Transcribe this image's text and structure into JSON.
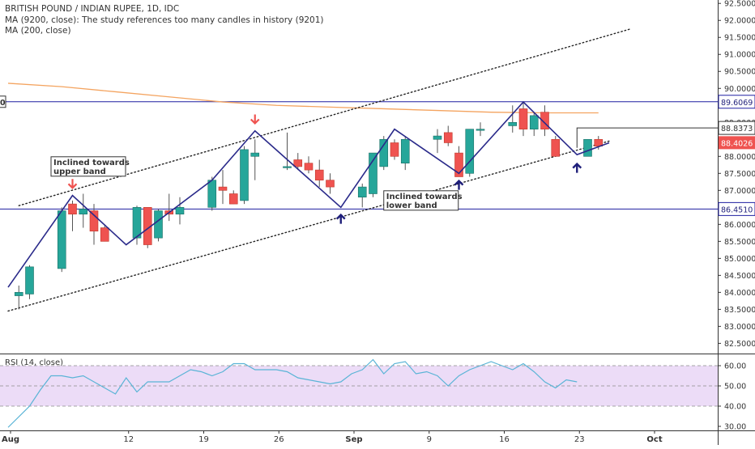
{
  "legend": {
    "title": "BRITISH POUND / INDIAN RUPEE, 1D, IDC",
    "ma1": "MA (9200, close): The study references too many candles in history (9201)",
    "ma2": "MA (200, close)",
    "rsi": "RSI (14, close)"
  },
  "colors": {
    "up": "#26a69a",
    "down": "#ef5350",
    "upBorder": "#1b6f66",
    "ma200": "#f4a460",
    "pattern": "#2a2a8a",
    "hline": "#1f1fa0",
    "rsi_line": "#5ab4d6",
    "rsi_band": "#ecdcf7",
    "arrow_down": "#ef5350",
    "arrow_up": "#1f1f7a"
  },
  "chart_data": [
    {
      "type": "candlestick",
      "title": "BRITISH POUND / INDIAN RUPEE, 1D, IDC",
      "x_ticks": [
        "Aug",
        "12",
        "19",
        "26",
        "Sep",
        "9",
        "16",
        "23",
        "Oct"
      ],
      "y_ticks": [
        "82.5000",
        "83.0000",
        "83.5000",
        "84.0000",
        "84.5000",
        "85.0000",
        "85.5000",
        "86.0000",
        "86.5000",
        "87.0000",
        "87.5000",
        "88.0000",
        "88.5000",
        "89.0000",
        "89.5000",
        "90.0000",
        "90.5000",
        "91.0000",
        "91.5000",
        "92.0000",
        "92.5000"
      ],
      "ylim": [
        82.2,
        92.6
      ],
      "days": [
        {
          "d": 1,
          "o": 83.9,
          "h": 84.2,
          "l": 83.5,
          "c": 84.0
        },
        {
          "d": 2,
          "o": 83.95,
          "h": 84.8,
          "l": 83.8,
          "c": 84.75
        },
        {
          "d": 5,
          "o": 84.7,
          "h": 86.5,
          "l": 84.6,
          "c": 86.4
        },
        {
          "d": 6,
          "o": 86.6,
          "h": 86.7,
          "l": 85.8,
          "c": 86.3
        },
        {
          "d": 7,
          "o": 86.3,
          "h": 86.9,
          "l": 85.9,
          "c": 86.45
        },
        {
          "d": 8,
          "o": 86.4,
          "h": 86.6,
          "l": 85.4,
          "c": 85.8
        },
        {
          "d": 9,
          "o": 85.9,
          "h": 86.0,
          "l": 85.5,
          "c": 85.5
        },
        {
          "d": 12,
          "o": 85.6,
          "h": 86.55,
          "l": 85.4,
          "c": 86.5
        },
        {
          "d": 13,
          "o": 86.5,
          "h": 86.5,
          "l": 85.3,
          "c": 85.4
        },
        {
          "d": 14,
          "o": 85.6,
          "h": 86.45,
          "l": 85.5,
          "c": 86.4
        },
        {
          "d": 15,
          "o": 86.4,
          "h": 86.9,
          "l": 86.1,
          "c": 86.3
        },
        {
          "d": 16,
          "o": 86.3,
          "h": 86.8,
          "l": 86.0,
          "c": 86.5
        },
        {
          "d": 19,
          "o": 86.5,
          "h": 87.4,
          "l": 86.4,
          "c": 87.3
        },
        {
          "d": 20,
          "o": 87.1,
          "h": 87.6,
          "l": 86.6,
          "c": 87.0
        },
        {
          "d": 21,
          "o": 86.9,
          "h": 87.0,
          "l": 86.6,
          "c": 86.6
        },
        {
          "d": 22,
          "o": 86.7,
          "h": 88.3,
          "l": 86.6,
          "c": 88.2
        },
        {
          "d": 23,
          "o": 88.0,
          "h": 88.5,
          "l": 87.3,
          "c": 88.1
        },
        {
          "d": 26,
          "o": 87.7,
          "h": 88.7,
          "l": 87.6,
          "c": 87.7
        },
        {
          "d": 27,
          "o": 87.9,
          "h": 88.1,
          "l": 87.6,
          "c": 87.7
        },
        {
          "d": 28,
          "o": 87.8,
          "h": 88.0,
          "l": 87.5,
          "c": 87.6
        },
        {
          "d": 29,
          "o": 87.6,
          "h": 87.9,
          "l": 87.1,
          "c": 87.3
        },
        {
          "d": 30,
          "o": 87.3,
          "h": 87.5,
          "l": 86.9,
          "c": 87.1
        },
        {
          "d": 33,
          "o": 86.8,
          "h": 87.2,
          "l": 86.5,
          "c": 87.1
        },
        {
          "d": 34,
          "o": 86.9,
          "h": 88.1,
          "l": 86.8,
          "c": 88.1
        },
        {
          "d": 35,
          "o": 87.7,
          "h": 88.6,
          "l": 87.6,
          "c": 88.5
        },
        {
          "d": 36,
          "o": 88.4,
          "h": 88.5,
          "l": 87.9,
          "c": 88.0
        },
        {
          "d": 37,
          "o": 87.8,
          "h": 88.6,
          "l": 87.6,
          "c": 88.5
        },
        {
          "d": 40,
          "o": 88.5,
          "h": 88.8,
          "l": 88.1,
          "c": 88.6
        },
        {
          "d": 41,
          "o": 88.7,
          "h": 88.9,
          "l": 88.3,
          "c": 88.4
        },
        {
          "d": 42,
          "o": 88.1,
          "h": 88.3,
          "l": 87.4,
          "c": 87.4
        },
        {
          "d": 43,
          "o": 87.5,
          "h": 88.8,
          "l": 87.4,
          "c": 88.8
        },
        {
          "d": 44,
          "o": 88.8,
          "h": 89.0,
          "l": 88.6,
          "c": 88.8
        },
        {
          "d": 47,
          "o": 88.9,
          "h": 89.5,
          "l": 88.7,
          "c": 89.0
        },
        {
          "d": 48,
          "o": 89.4,
          "h": 89.6,
          "l": 88.6,
          "c": 88.8
        },
        {
          "d": 49,
          "o": 88.8,
          "h": 89.3,
          "l": 88.6,
          "c": 89.2
        },
        {
          "d": 50,
          "o": 89.3,
          "h": 89.5,
          "l": 88.6,
          "c": 88.8
        },
        {
          "d": 51,
          "o": 88.5,
          "h": 88.6,
          "l": 88.3,
          "c": 88.0
        },
        {
          "d": 54,
          "o": 88.0,
          "h": 88.5,
          "l": 88.0,
          "c": 88.5
        },
        {
          "d": 55,
          "o": 88.5,
          "h": 88.6,
          "l": 88.2,
          "c": 88.3
        }
      ],
      "ma200": [
        [
          0,
          90.15
        ],
        [
          5,
          90.05
        ],
        [
          10,
          89.9
        ],
        [
          15,
          89.75
        ],
        [
          20,
          89.6
        ],
        [
          25,
          89.5
        ],
        [
          30,
          89.45
        ],
        [
          35,
          89.4
        ],
        [
          40,
          89.35
        ],
        [
          45,
          89.3
        ],
        [
          50,
          89.28
        ],
        [
          55,
          89.28
        ]
      ],
      "channel_upper": [
        [
          1,
          86.55
        ],
        [
          58,
          91.75
        ]
      ],
      "channel_lower": [
        [
          0,
          83.45
        ],
        [
          56,
          88.45
        ]
      ],
      "zigzag": [
        [
          0,
          84.15
        ],
        [
          6,
          86.85
        ],
        [
          11,
          85.4
        ],
        [
          19,
          87.3
        ],
        [
          23,
          88.75
        ],
        [
          31,
          86.5
        ],
        [
          36,
          88.8
        ],
        [
          42,
          87.5
        ],
        [
          48,
          89.6
        ],
        [
          53,
          88.05
        ],
        [
          56,
          88.4
        ]
      ],
      "hlines": [
        {
          "price": 89.6069,
          "label": "89.6069"
        },
        {
          "price": 86.451,
          "label": "86.4510"
        }
      ],
      "bracket": {
        "price": 88.8373,
        "label": "88.8373",
        "from": 53,
        "to": 58.5
      },
      "last_price": {
        "price": 88.4026,
        "label": "88.4026"
      },
      "left_edge_label": "0",
      "annotations": [
        {
          "text1": "Inclined towards",
          "text2": "upper band",
          "d": 4,
          "price": 87.75
        },
        {
          "text1": "Inclined towards",
          "text2": "lower band",
          "d": 35,
          "price": 86.75
        }
      ],
      "arrows_down": [
        [
          6,
          87.0
        ],
        [
          23,
          88.9
        ]
      ],
      "arrows_up": [
        [
          31,
          86.35
        ],
        [
          42,
          87.35
        ],
        [
          53,
          87.85
        ]
      ]
    },
    {
      "type": "line",
      "title": "RSI (14, close)",
      "y_ticks": [
        "30.00",
        "40.00",
        "50.00",
        "60.00"
      ],
      "ylim": [
        28,
        66
      ],
      "band": [
        40,
        60
      ],
      "dashed": [
        40,
        50,
        60
      ],
      "values": [
        [
          0,
          29.5
        ],
        [
          2,
          40
        ],
        [
          3,
          48
        ],
        [
          4,
          55
        ],
        [
          5,
          55
        ],
        [
          6,
          54
        ],
        [
          7,
          55
        ],
        [
          8,
          52
        ],
        [
          9,
          49
        ],
        [
          10,
          46
        ],
        [
          11,
          54
        ],
        [
          12,
          47
        ],
        [
          13,
          52
        ],
        [
          14,
          52
        ],
        [
          15,
          52
        ],
        [
          16,
          55
        ],
        [
          17,
          58
        ],
        [
          18,
          57
        ],
        [
          19,
          55
        ],
        [
          20,
          57
        ],
        [
          21,
          61
        ],
        [
          22,
          61
        ],
        [
          23,
          58
        ],
        [
          24,
          58
        ],
        [
          25,
          58
        ],
        [
          26,
          57
        ],
        [
          27,
          54
        ],
        [
          28,
          53
        ],
        [
          29,
          52
        ],
        [
          30,
          51
        ],
        [
          31,
          52
        ],
        [
          32,
          56
        ],
        [
          33,
          58
        ],
        [
          34,
          63
        ],
        [
          35,
          56
        ],
        [
          36,
          61
        ],
        [
          37,
          62
        ],
        [
          38,
          56
        ],
        [
          39,
          57
        ],
        [
          40,
          55
        ],
        [
          41,
          50
        ],
        [
          42,
          55
        ],
        [
          43,
          58
        ],
        [
          44,
          60
        ],
        [
          45,
          62
        ],
        [
          46,
          60
        ],
        [
          47,
          58
        ],
        [
          48,
          61
        ],
        [
          49,
          57
        ],
        [
          50,
          52
        ],
        [
          51,
          49
        ],
        [
          52,
          53
        ],
        [
          53,
          52
        ]
      ]
    }
  ]
}
